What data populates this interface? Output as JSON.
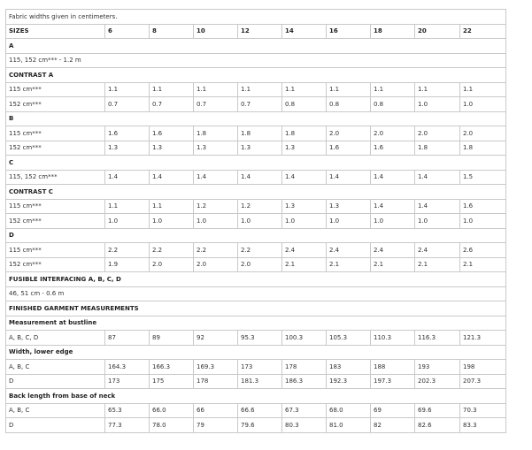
{
  "note": "Fabric widths given in centimeters.",
  "sizes_header": "SIZES",
  "sizes": [
    "6",
    "8",
    "10",
    "12",
    "14",
    "16",
    "18",
    "20",
    "22"
  ],
  "rows": [
    {
      "type": "section",
      "text": "A"
    },
    {
      "type": "span",
      "text": "115, 152 cm*** - 1.2 m"
    },
    {
      "type": "section",
      "text": "CONTRAST A"
    },
    {
      "type": "data",
      "label": "115 cm***",
      "values": [
        "1.1",
        "1.1",
        "1.1",
        "1.1",
        "1.1",
        "1.1",
        "1.1",
        "1.1",
        "1.1"
      ],
      "unit": "m"
    },
    {
      "type": "data",
      "label": "152 cm***",
      "values": [
        "0.7",
        "0.7",
        "0.7",
        "0.7",
        "0.8",
        "0.8",
        "0.8",
        "1.0",
        "1.0"
      ],
      "unit": "m"
    },
    {
      "type": "section",
      "text": "B"
    },
    {
      "type": "data",
      "label": "115 cm***",
      "values": [
        "1.6",
        "1.6",
        "1.8",
        "1.8",
        "1.8",
        "2.0",
        "2.0",
        "2.0",
        "2.0"
      ],
      "unit": "m"
    },
    {
      "type": "data",
      "label": "152 cm***",
      "values": [
        "1.3",
        "1.3",
        "1.3",
        "1.3",
        "1.3",
        "1.6",
        "1.6",
        "1.8",
        "1.8"
      ],
      "unit": "m"
    },
    {
      "type": "section",
      "text": "C"
    },
    {
      "type": "data",
      "label": "115, 152 cm***",
      "values": [
        "1.4",
        "1.4",
        "1.4",
        "1.4",
        "1.4",
        "1.4",
        "1.4",
        "1.4",
        "1.5"
      ],
      "unit": "m"
    },
    {
      "type": "section",
      "text": "CONTRAST C"
    },
    {
      "type": "data",
      "label": "115 cm***",
      "values": [
        "1.1",
        "1.1",
        "1.2",
        "1.2",
        "1.3",
        "1.3",
        "1.4",
        "1.4",
        "1.6"
      ],
      "unit": "m"
    },
    {
      "type": "data",
      "label": "152 cm***",
      "values": [
        "1.0",
        "1.0",
        "1.0",
        "1.0",
        "1.0",
        "1.0",
        "1.0",
        "1.0",
        "1.0"
      ],
      "unit": "m"
    },
    {
      "type": "section",
      "text": "D"
    },
    {
      "type": "data",
      "label": "115 cm***",
      "values": [
        "2.2",
        "2.2",
        "2.2",
        "2.2",
        "2.4",
        "2.4",
        "2.4",
        "2.4",
        "2.6"
      ],
      "unit": "m"
    },
    {
      "type": "data",
      "label": "152 cm***",
      "values": [
        "1.9",
        "2.0",
        "2.0",
        "2.0",
        "2.1",
        "2.1",
        "2.1",
        "2.1",
        "2.1"
      ],
      "unit": "m"
    },
    {
      "type": "section",
      "text": "FUSIBLE INTERFACING A, B, C, D"
    },
    {
      "type": "span",
      "text": "46, 51 cm - 0.6 m"
    },
    {
      "type": "section",
      "text": "FINISHED GARMENT MEASUREMENTS"
    },
    {
      "type": "section",
      "text": "Measurement at bustline"
    },
    {
      "type": "data",
      "label": "A, B, C, D",
      "values": [
        "87",
        "89",
        "92",
        "95.3",
        "100.3",
        "105.3",
        "110.3",
        "116.3",
        "121.3"
      ],
      "unit": "cm"
    },
    {
      "type": "section",
      "text": "Width, lower edge"
    },
    {
      "type": "data",
      "label": "A, B, C",
      "values": [
        "164.3",
        "166.3",
        "169.3",
        "173",
        "178",
        "183",
        "188",
        "193",
        "198"
      ],
      "unit": "cm"
    },
    {
      "type": "data",
      "label": "D",
      "values": [
        "173",
        "175",
        "178",
        "181.3",
        "186.3",
        "192.3",
        "197.3",
        "202.3",
        "207.3"
      ],
      "unit": "cm"
    },
    {
      "type": "section",
      "text": "Back length from base of neck"
    },
    {
      "type": "data",
      "label": "A, B, C",
      "values": [
        "65.3",
        "66.0",
        "66",
        "66.6",
        "67.3",
        "68.0",
        "69",
        "69.6",
        "70.3"
      ],
      "unit": "cm"
    },
    {
      "type": "data",
      "label": "D",
      "values": [
        "77.3",
        "78.0",
        "79",
        "79.6",
        "80.3",
        "81.0",
        "82",
        "82.6",
        "83.3"
      ],
      "unit": "cm"
    }
  ]
}
